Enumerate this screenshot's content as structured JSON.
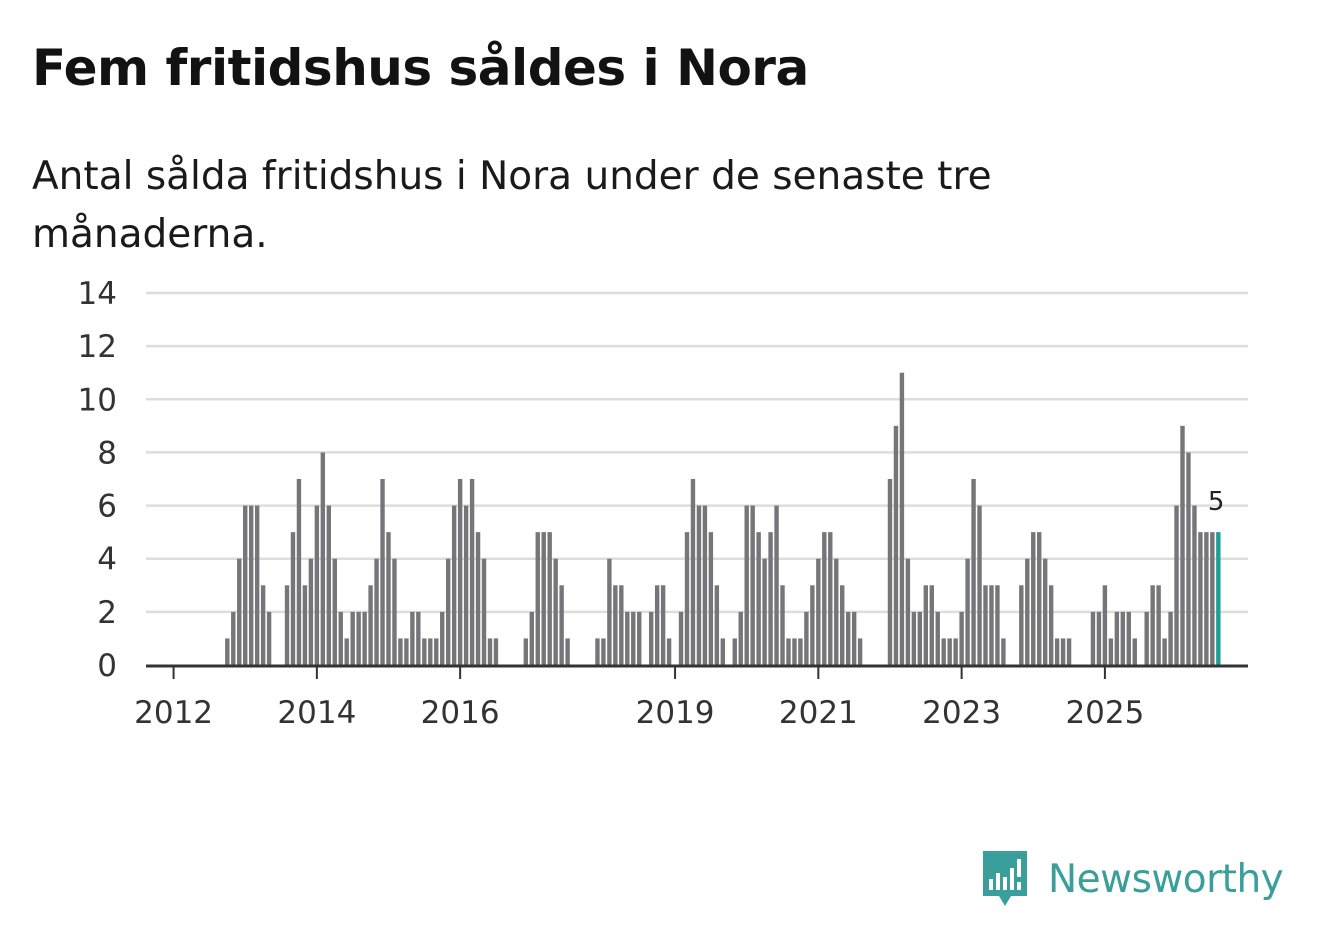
{
  "title": "Fem fritidshus såldes i Nora",
  "subtitle": "Antal sålda fritidshus i Nora under de senaste tre månaderna.",
  "brand": {
    "name": "Newsworthy",
    "color": "#3a9e9a",
    "icon": "newsworthy-chart-bubble-icon"
  },
  "colors": {
    "bar": "#76757a",
    "highlight": "#1f9e96",
    "grid": "#dddddd",
    "axis": "#333333"
  },
  "chart_data": {
    "type": "bar",
    "title": "Fem fritidshus såldes i Nora",
    "subtitle": "Antal sålda fritidshus i Nora under de senaste tre månaderna.",
    "xlabel": "",
    "ylabel": "",
    "ylim": [
      0,
      14
    ],
    "y_ticks": [
      "0",
      "2",
      "4",
      "6",
      "8",
      "10",
      "12",
      "14"
    ],
    "x_ticks": [
      "2012",
      "2014",
      "2016",
      "2019",
      "2021",
      "2023",
      "2025"
    ],
    "x_tick_index": [
      4,
      28,
      52,
      88,
      112,
      136,
      160
    ],
    "grid": true,
    "legend": "none",
    "last_label": "5",
    "values": [
      0,
      0,
      0,
      0,
      0,
      0,
      0,
      0,
      0,
      0,
      0,
      0,
      0,
      1,
      2,
      4,
      6,
      6,
      6,
      3,
      2,
      0,
      0,
      3,
      5,
      7,
      3,
      4,
      6,
      8,
      6,
      4,
      2,
      1,
      2,
      2,
      2,
      3,
      4,
      7,
      5,
      4,
      1,
      1,
      2,
      2,
      1,
      1,
      1,
      2,
      4,
      6,
      7,
      6,
      7,
      5,
      4,
      1,
      1,
      0,
      0,
      0,
      0,
      1,
      2,
      5,
      5,
      5,
      4,
      3,
      1,
      0,
      0,
      0,
      0,
      1,
      1,
      4,
      3,
      3,
      2,
      2,
      2,
      0,
      2,
      3,
      3,
      1,
      0,
      2,
      5,
      7,
      6,
      6,
      5,
      3,
      1,
      0,
      1,
      2,
      6,
      6,
      5,
      4,
      5,
      6,
      3,
      1,
      1,
      1,
      2,
      3,
      4,
      5,
      5,
      4,
      3,
      2,
      2,
      1,
      0,
      0,
      0,
      0,
      7,
      9,
      11,
      4,
      2,
      2,
      3,
      3,
      2,
      1,
      1,
      1,
      2,
      4,
      7,
      6,
      3,
      3,
      3,
      1,
      0,
      0,
      3,
      4,
      5,
      5,
      4,
      3,
      1,
      1,
      1,
      0,
      0,
      0,
      2,
      2,
      3,
      1,
      2,
      2,
      2,
      1,
      0,
      2,
      3,
      3,
      1,
      2,
      6,
      9,
      8,
      6,
      5,
      5,
      5,
      5
    ]
  }
}
